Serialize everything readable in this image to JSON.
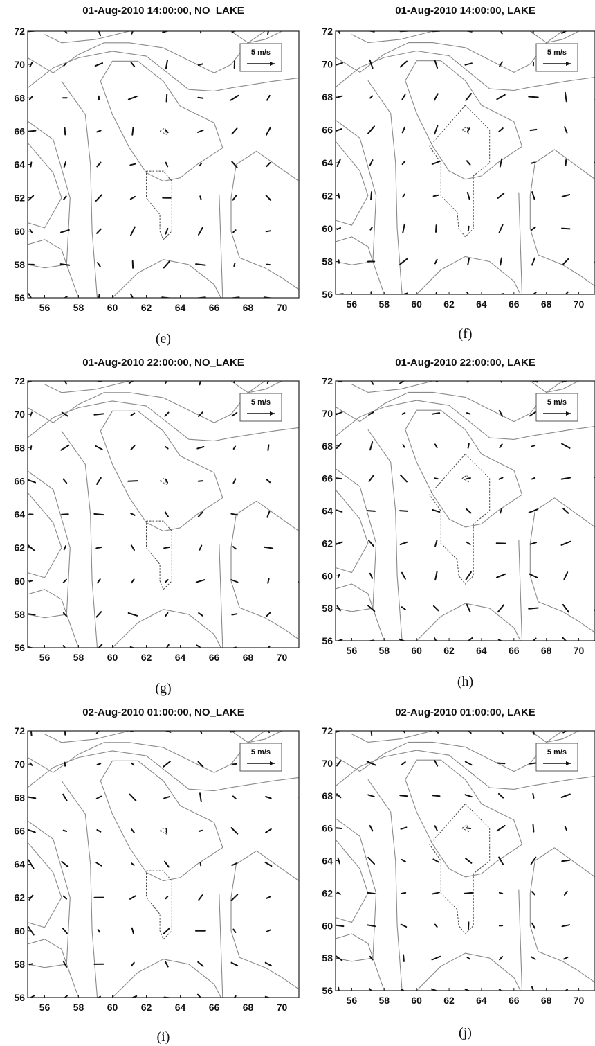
{
  "figure": {
    "panels": [
      {
        "title": "01-Aug-2010 14:00:00, NO_LAKE",
        "caption": "(e)",
        "legend": "5 m/s",
        "variant": "no_lake"
      },
      {
        "title": "01-Aug-2010 14:00:00, LAKE",
        "caption": "(f)",
        "legend": "5 m/s",
        "variant": "lake"
      },
      {
        "title": "01-Aug-2010 22:00:00, NO_LAKE",
        "caption": "(g)",
        "legend": "5 m/s",
        "variant": "no_lake"
      },
      {
        "title": "01-Aug-2010 22:00:00, LAKE",
        "caption": "(h)",
        "legend": "5 m/s",
        "variant": "lake"
      },
      {
        "title": "02-Aug-2010 01:00:00, NO_LAKE",
        "caption": "(i)",
        "legend": "5 m/s",
        "variant": "no_lake"
      },
      {
        "title": "02-Aug-2010 01:00:00, LAKE",
        "caption": "(j)",
        "legend": "5 m/s",
        "variant": "lake"
      }
    ]
  },
  "chart_data": [
    {
      "type": "vector_field",
      "title": "01-Aug-2010 14:00:00, NO_LAKE",
      "xlim": [
        55,
        71
      ],
      "ylim": [
        56,
        72
      ],
      "xticks": [
        56,
        58,
        60,
        62,
        64,
        66,
        68,
        70
      ],
      "yticks": [
        56,
        58,
        60,
        62,
        64,
        66,
        68,
        70,
        72
      ],
      "reference_vector": "5 m/s"
    },
    {
      "type": "vector_field",
      "title": "01-Aug-2010 14:00:00, LAKE",
      "xlim": [
        55,
        71
      ],
      "ylim": [
        56,
        72
      ],
      "xticks": [
        56,
        58,
        60,
        62,
        64,
        66,
        68,
        70
      ],
      "yticks": [
        56,
        58,
        60,
        62,
        64,
        66,
        68,
        70,
        72
      ],
      "reference_vector": "5 m/s"
    },
    {
      "type": "vector_field",
      "title": "01-Aug-2010 22:00:00, NO_LAKE",
      "xlim": [
        55,
        71
      ],
      "ylim": [
        56,
        72
      ],
      "xticks": [
        56,
        58,
        60,
        62,
        64,
        66,
        68,
        70
      ],
      "yticks": [
        56,
        58,
        60,
        62,
        64,
        66,
        68,
        70,
        72
      ],
      "reference_vector": "5 m/s"
    },
    {
      "type": "vector_field",
      "title": "01-Aug-2010 22:00:00, LAKE",
      "xlim": [
        55,
        71
      ],
      "ylim": [
        56,
        72
      ],
      "xticks": [
        56,
        58,
        60,
        62,
        64,
        66,
        68,
        70
      ],
      "yticks": [
        56,
        58,
        60,
        62,
        64,
        66,
        68,
        70,
        72
      ],
      "reference_vector": "5 m/s"
    },
    {
      "type": "vector_field",
      "title": "02-Aug-2010 01:00:00, NO_LAKE",
      "xlim": [
        55,
        71
      ],
      "ylim": [
        56,
        72
      ],
      "xticks": [
        56,
        58,
        60,
        62,
        64,
        66,
        68,
        70
      ],
      "yticks": [
        56,
        58,
        60,
        62,
        64,
        66,
        68,
        70,
        72
      ],
      "reference_vector": "5 m/s"
    },
    {
      "type": "vector_field",
      "title": "02-Aug-2010 01:00:00, LAKE",
      "xlim": [
        55,
        71
      ],
      "ylim": [
        56,
        72
      ],
      "xticks": [
        56,
        58,
        60,
        62,
        64,
        66,
        68,
        70
      ],
      "yticks": [
        56,
        58,
        60,
        62,
        64,
        66,
        68,
        70,
        72
      ],
      "reference_vector": "5 m/s"
    }
  ]
}
